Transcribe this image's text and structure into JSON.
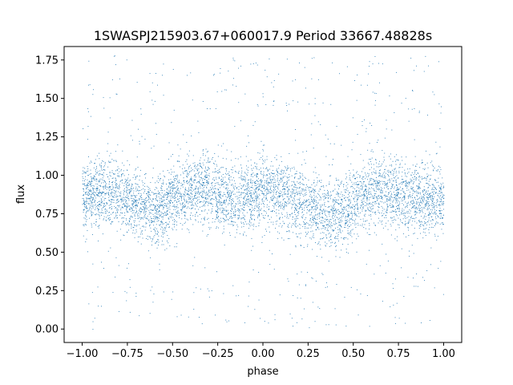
{
  "chart_data": {
    "type": "scatter",
    "title": "1SWASPJ215903.67+060017.9 Period 33667.48828s",
    "xlabel": "phase",
    "ylabel": "flux",
    "xlim": [
      -1.1,
      1.1
    ],
    "ylim": [
      -0.0875,
      1.8375
    ],
    "xticks": [
      -1.0,
      -0.75,
      -0.5,
      -0.25,
      0.0,
      0.25,
      0.5,
      0.75,
      1.0
    ],
    "xtick_labels": [
      "−1.00",
      "−0.75",
      "−0.50",
      "−0.25",
      "0.00",
      "0.25",
      "0.50",
      "0.75",
      "1.00"
    ],
    "yticks": [
      0.0,
      0.25,
      0.5,
      0.75,
      1.0,
      1.25,
      1.5,
      1.75
    ],
    "ytick_labels": [
      "0.00",
      "0.25",
      "0.50",
      "0.75",
      "1.00",
      "1.25",
      "1.50",
      "1.75"
    ],
    "grid": false,
    "color": "#1f77b4",
    "series": [
      {
        "phase": [
          -1.0,
          -0.9,
          -0.8,
          -0.75,
          -0.7,
          -0.65,
          -0.6,
          -0.55,
          -0.5,
          -0.45,
          -0.4,
          -0.35,
          -0.3,
          -0.25,
          -0.2,
          -0.15,
          -0.1,
          -0.05,
          0.0,
          0.05,
          0.1,
          0.15,
          0.2,
          0.25,
          0.3,
          0.35,
          0.4,
          0.45,
          0.5,
          0.55,
          0.6,
          0.65,
          0.7,
          0.75,
          0.8,
          0.85,
          0.9,
          0.95,
          1.0
        ],
        "flux_mean": [
          0.86,
          0.9,
          0.88,
          0.84,
          0.81,
          0.79,
          0.76,
          0.8,
          0.86,
          0.89,
          0.9,
          0.92,
          0.91,
          0.88,
          0.85,
          0.84,
          0.85,
          0.88,
          0.9,
          0.9,
          0.89,
          0.86,
          0.84,
          0.8,
          0.78,
          0.76,
          0.75,
          0.77,
          0.82,
          0.87,
          0.9,
          0.92,
          0.91,
          0.88,
          0.86,
          0.85,
          0.85,
          0.84,
          0.85
        ]
      }
    ]
  }
}
